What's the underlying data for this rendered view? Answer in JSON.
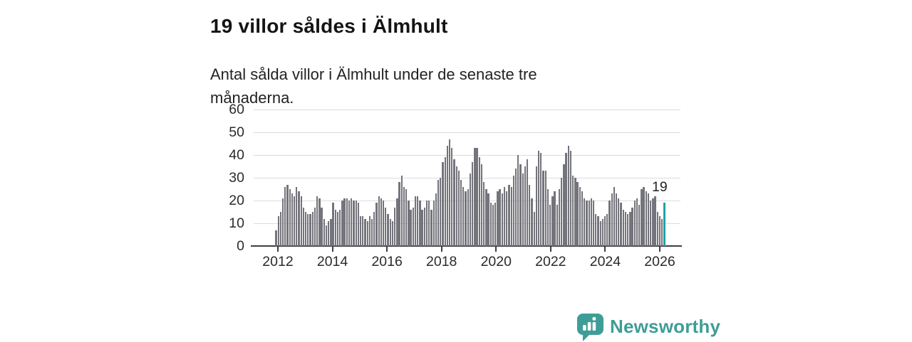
{
  "header": {
    "title": "19 villor såldes i Älmhult",
    "subtitle": "Antal sålda villor i Älmhult under de senaste tre månaderna."
  },
  "chart_data": {
    "type": "bar",
    "title": "19 villor såldes i Älmhult",
    "subtitle": "Antal sålda villor i Älmhult under de senaste tre månaderna.",
    "freq": "monthly",
    "x_start": "2011-12",
    "x_end": "2026-02",
    "values": [
      7,
      13,
      15,
      21,
      26,
      27,
      25,
      23,
      22,
      26,
      24,
      22,
      17,
      15,
      14,
      14,
      15,
      17,
      22,
      21,
      17,
      12,
      9,
      11,
      12,
      19,
      16,
      15,
      16,
      20,
      21,
      21,
      20,
      21,
      20,
      20,
      19,
      13,
      13,
      12,
      11,
      13,
      12,
      15,
      19,
      22,
      21,
      20,
      17,
      14,
      12,
      11,
      17,
      21,
      28,
      31,
      26,
      25,
      20,
      16,
      17,
      22,
      22,
      20,
      16,
      17,
      20,
      20,
      16,
      20,
      23,
      29,
      30,
      37,
      39,
      44,
      47,
      43,
      38,
      35,
      33,
      29,
      26,
      24,
      25,
      32,
      37,
      43,
      43,
      39,
      36,
      28,
      25,
      23,
      19,
      18,
      19,
      24,
      25,
      23,
      26,
      24,
      27,
      26,
      31,
      34,
      40,
      36,
      32,
      35,
      38,
      27,
      21,
      15,
      35,
      42,
      41,
      33,
      33,
      25,
      18,
      22,
      24,
      18,
      25,
      30,
      36,
      41,
      44,
      42,
      31,
      30,
      28,
      26,
      24,
      21,
      20,
      20,
      21,
      20,
      14,
      13,
      11,
      12,
      13,
      14,
      20,
      23,
      26,
      23,
      21,
      19,
      16,
      15,
      14,
      15,
      17,
      20,
      21,
      18,
      25,
      26,
      24,
      23,
      20,
      21,
      22,
      15,
      13,
      12,
      19
    ],
    "highlight": {
      "index_from_end": 1,
      "value": 19,
      "label": "19",
      "color": "#21a3a2"
    },
    "bar_color": "#74747c",
    "ylim": [
      0,
      60
    ],
    "yticks": [
      0,
      10,
      20,
      30,
      40,
      50,
      60
    ],
    "xticks": [
      "2012",
      "2014",
      "2016",
      "2018",
      "2020",
      "2022",
      "2024",
      "2026"
    ],
    "grid": true,
    "legend": "none"
  },
  "footer": {
    "brand": "Newsworthy",
    "brand_color": "#3f9d97",
    "logo_icon": "newsworthy-speech-bubble-chart-icon"
  }
}
